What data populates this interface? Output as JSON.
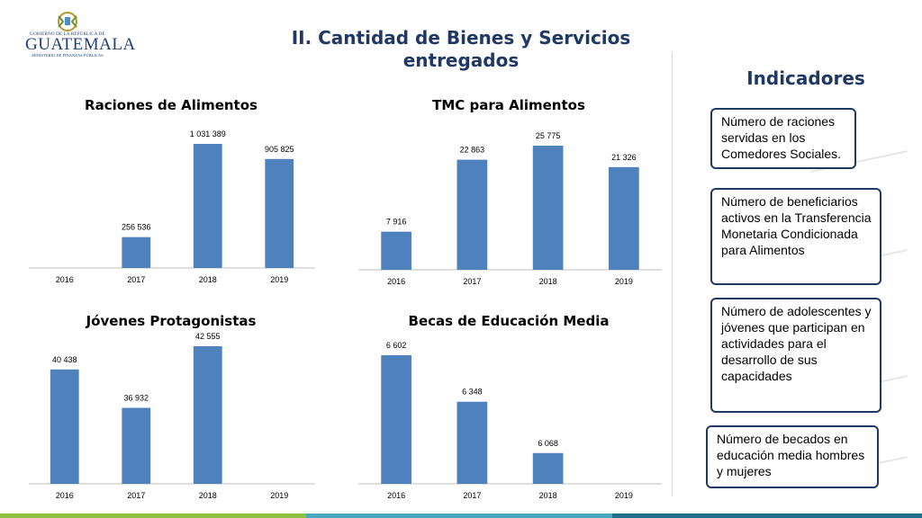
{
  "logo": {
    "top_text": "GOBIERNO DE LA REPÚBLICA DE",
    "name": "GUATEMALA",
    "sub_text": "MINISTERIO DE FINANZAS PÚBLICAS"
  },
  "header": {
    "title_line1": "II. Cantidad de Bienes y Servicios",
    "title_line2": "entregados"
  },
  "indicators": {
    "title": "Indicadores",
    "items": [
      {
        "text": "Número de raciones servidas en los Comedores Sociales."
      },
      {
        "text": "Número de beneficiarios activos en la Transferencia Monetaria Condicionada para Alimentos"
      },
      {
        "text": "Número de adolescentes y jóvenes que participan en actividades para el desarrollo de sus capacidades"
      },
      {
        "text": "Número de becados en educación media hombres y mujeres"
      }
    ]
  },
  "colors": {
    "bar": "#4f81bd",
    "title": "#1f3864",
    "bottom_bar": [
      "#8fbf3f",
      "#4aa8c0",
      "#1f6f8b"
    ]
  },
  "chart_data": [
    {
      "type": "bar",
      "title": "Raciones de Alimentos",
      "categories": [
        "2016",
        "2017",
        "2018",
        "2019"
      ],
      "values": [
        null,
        256536,
        1031389,
        905825
      ],
      "labels": [
        "",
        "256 536",
        "1 031 389",
        "905 825"
      ],
      "ylim": [
        0,
        1031389
      ]
    },
    {
      "type": "bar",
      "title": "TMC para Alimentos",
      "categories": [
        "2016",
        "2017",
        "2018",
        "2019"
      ],
      "values": [
        7916,
        22863,
        25775,
        21326
      ],
      "labels": [
        "7 916",
        "22 863",
        "25 775",
        "21 326"
      ],
      "ylim": [
        0,
        25775
      ]
    },
    {
      "type": "bar",
      "title": "Jóvenes Protagonistas",
      "categories": [
        "2016",
        "2017",
        "2018",
        "2019"
      ],
      "values": [
        40438,
        36932,
        42555,
        null
      ],
      "labels": [
        "40 438",
        "36 932",
        "42 555",
        ""
      ],
      "ylim": [
        30000,
        42555
      ]
    },
    {
      "type": "bar",
      "title": "Becas de Educación Media",
      "categories": [
        "2016",
        "2017",
        "2018",
        "2019"
      ],
      "values": [
        6602,
        6348,
        6068,
        null
      ],
      "labels": [
        "6 602",
        "6 348",
        "6 068",
        ""
      ],
      "ylim": [
        5900,
        6602
      ]
    }
  ]
}
